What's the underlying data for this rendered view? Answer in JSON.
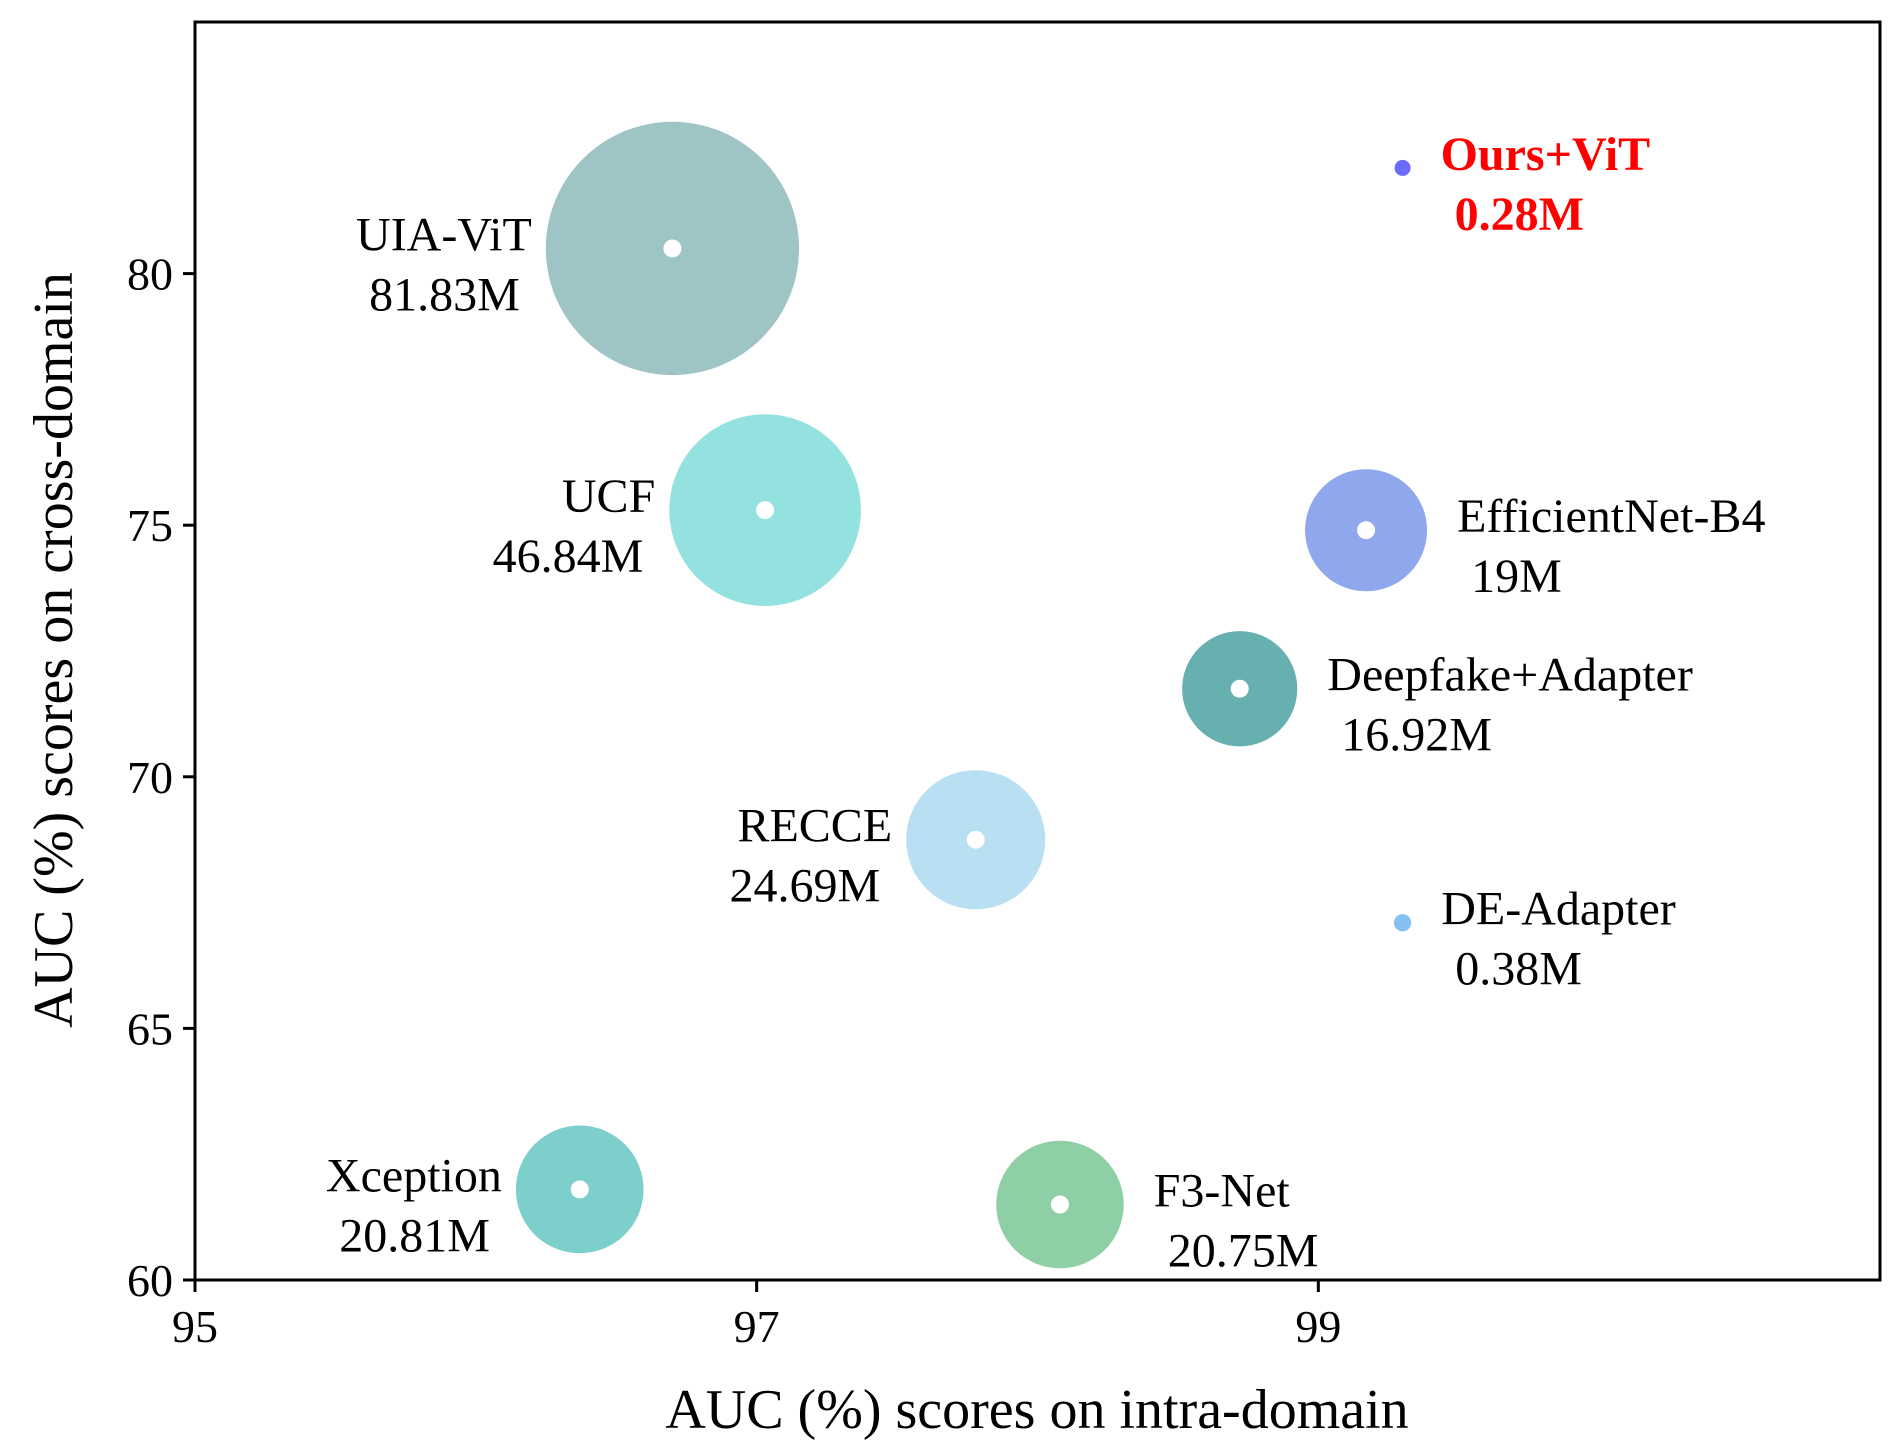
{
  "chart_data": {
    "type": "scatter",
    "subtype": "bubble",
    "title": "",
    "xlabel": "AUC (%) scores on intra-domain",
    "ylabel": "AUC (%) scores on cross-domain",
    "xlim": [
      95,
      101
    ],
    "ylim": [
      60,
      85
    ],
    "xticks": [
      "95",
      "97",
      "99"
    ],
    "yticks": [
      "60",
      "65",
      "70",
      "75",
      "80"
    ],
    "size_encoding": "number of trainable parameters (M)",
    "points": [
      {
        "name": "UIA-ViT",
        "params_label": "81.83M",
        "params": 81.83,
        "x": 96.7,
        "y": 80.5,
        "color": "#9fc4c6",
        "label_side": "left",
        "highlight": false
      },
      {
        "name": "UCF",
        "params_label": "46.84M",
        "params": 46.84,
        "x": 97.03,
        "y": 75.3,
        "color": "#93e2df",
        "label_side": "left",
        "highlight": false
      },
      {
        "name": "EfficientNet-B4",
        "params_label": "19M",
        "params": 19,
        "x": 99.17,
        "y": 74.9,
        "color": "#8fa7ec",
        "label_side": "right",
        "highlight": false
      },
      {
        "name": "Deepfake+Adapter",
        "params_label": "16.92M",
        "params": 16.92,
        "x": 98.72,
        "y": 71.75,
        "color": "#66b0b0",
        "label_side": "right",
        "highlight": false
      },
      {
        "name": "RECCE",
        "params_label": "24.69M",
        "params": 24.69,
        "x": 97.78,
        "y": 68.75,
        "color": "#b8dff2",
        "label_side": "left",
        "highlight": false
      },
      {
        "name": "DE-Adapter",
        "params_label": "0.38M",
        "params": 0.38,
        "x": 99.3,
        "y": 67.1,
        "color": "#86bff3",
        "label_side": "right",
        "highlight": false
      },
      {
        "name": "Xception",
        "params_label": "20.81M",
        "params": 20.81,
        "x": 96.37,
        "y": 61.8,
        "color": "#7dcfcb",
        "label_side": "left",
        "highlight": false
      },
      {
        "name": "F3-Net",
        "params_label": "20.75M",
        "params": 20.75,
        "x": 98.08,
        "y": 61.5,
        "color": "#8fcfa5",
        "label_side": "right",
        "highlight": false
      },
      {
        "name": "Ours+ViT",
        "params_label": "0.28M",
        "params": 0.28,
        "x": 99.3,
        "y": 82.1,
        "color": "#6b6bff",
        "label_side": "right",
        "highlight": true
      }
    ]
  }
}
